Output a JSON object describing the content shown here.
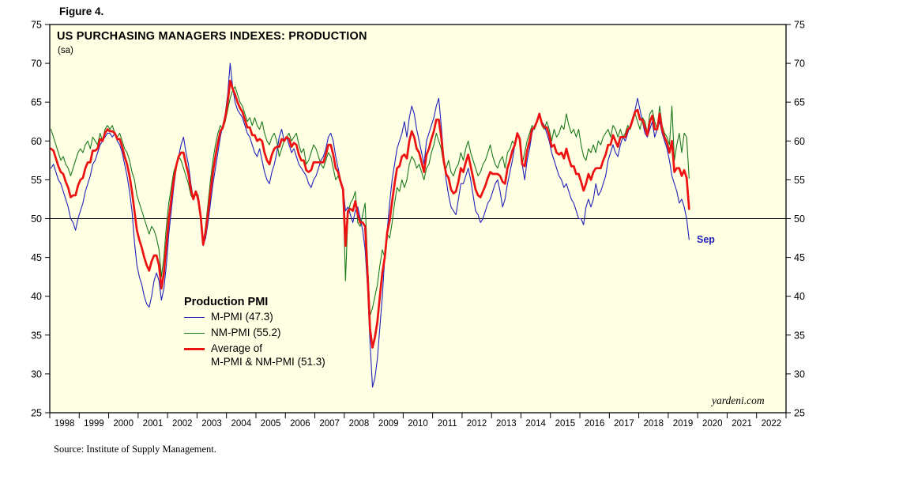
{
  "figure_label": "Figure 4.",
  "chart": {
    "title": "US PURCHASING MANAGERS INDEXES: PRODUCTION",
    "subtitle": "(sa)",
    "watermark": "yardeni.com",
    "annotation": {
      "text": "Sep",
      "color": "#2222bb"
    },
    "plot_background": "#ffffe3",
    "axis_color": "#000000",
    "legend": {
      "heading": "Production PMI",
      "items": [
        {
          "lines": [
            "M-PMI (47.3)"
          ],
          "weight": "thin",
          "color": "#2222bb"
        },
        {
          "lines": [
            "NM-PMI (55.2)"
          ],
          "weight": "thin",
          "color": "#1e7a1e"
        },
        {
          "lines": [
            "Average of",
            "M-PMI & NM-PMI (51.3)"
          ],
          "weight": "thick",
          "color": "#ee1111"
        }
      ]
    }
  },
  "source_note": "Source: Institute of Supply Management.",
  "chart_data": {
    "type": "line",
    "frequency": "monthly",
    "data_start": "1998-01",
    "data_end": "2019-09",
    "ylim": [
      25,
      75
    ],
    "y_ticks": [
      25,
      30,
      35,
      40,
      45,
      50,
      55,
      60,
      65,
      70,
      75
    ],
    "reference_line": 50,
    "x_axis_years": [
      1998,
      1999,
      2000,
      2001,
      2002,
      2003,
      2004,
      2005,
      2006,
      2007,
      2008,
      2009,
      2010,
      2011,
      2012,
      2013,
      2014,
      2015,
      2016,
      2017,
      2018,
      2019,
      2020,
      2021,
      2022
    ],
    "series": [
      {
        "name": "M-PMI",
        "latest_value": 47.3,
        "color": "#2222bb",
        "values": [
          56.5,
          57,
          56,
          55,
          54.5,
          53.5,
          52.5,
          51.5,
          50,
          49.5,
          48.5,
          50,
          51,
          52,
          53.5,
          54.5,
          55.5,
          57,
          57.5,
          58.5,
          59.5,
          60,
          60.5,
          61,
          61,
          60.5,
          61,
          60,
          59.5,
          58.5,
          57,
          55.5,
          53.5,
          51,
          47,
          44,
          42.5,
          41.5,
          40,
          39,
          38.6,
          40,
          42,
          43,
          42,
          39.5,
          41,
          44,
          48,
          51,
          54,
          56.5,
          58,
          59.5,
          60.5,
          58.5,
          57,
          54.5,
          52.5,
          53.5,
          52,
          50,
          46.5,
          47.5,
          49.5,
          52,
          54.5,
          56.5,
          58.5,
          60.5,
          62,
          63.5,
          66,
          70,
          67,
          65,
          64,
          63.5,
          63,
          62,
          61,
          60.5,
          59.5,
          58.5,
          58,
          59,
          57.5,
          56,
          55,
          54.5,
          56,
          57,
          58.5,
          60.5,
          61.5,
          60,
          60.5,
          59.5,
          58.5,
          59,
          58,
          57,
          56.5,
          56,
          55.5,
          54.5,
          54,
          55,
          55.5,
          56.5,
          57.5,
          58,
          59,
          60.5,
          61,
          60,
          58,
          56.5,
          55,
          54,
          51,
          51.5,
          50.5,
          49.5,
          51,
          51.5,
          50,
          48.5,
          46,
          41,
          34,
          28.3,
          29.5,
          32,
          36,
          40,
          45,
          48.5,
          52,
          55,
          57,
          59,
          60,
          61,
          62.5,
          60.5,
          63,
          64.5,
          63.5,
          61.5,
          60,
          58.5,
          57,
          60,
          61,
          62,
          63,
          64.5,
          65.5,
          62,
          58,
          55,
          53,
          51.5,
          51,
          50.5,
          52.5,
          54.5,
          54.5,
          55.5,
          56.5,
          55,
          53,
          51,
          50.5,
          49.5,
          50,
          51,
          52,
          52.5,
          53.5,
          54.5,
          55,
          53.5,
          51.5,
          52.5,
          54.5,
          56,
          57.5,
          59.5,
          61,
          60,
          57,
          55,
          57.5,
          59,
          61,
          62,
          62.5,
          63.5,
          62.5,
          62,
          61,
          60,
          58.5,
          57.5,
          56.5,
          55.5,
          55,
          54,
          54.5,
          53.5,
          52.5,
          52,
          51,
          50,
          50,
          49.2,
          51.5,
          52.5,
          51.5,
          52.5,
          54.5,
          53,
          53.5,
          54.5,
          55.5,
          57.5,
          58.5,
          59.5,
          58.5,
          58,
          59.5,
          60.5,
          60,
          61,
          62,
          63,
          64,
          65.5,
          64,
          62.5,
          61,
          60.5,
          61.5,
          62.5,
          60.5,
          61.5,
          62.5,
          61,
          60,
          59,
          57.5,
          55.5,
          54.5,
          53.5,
          52,
          52.5,
          51.5,
          50,
          47.3
        ]
      },
      {
        "name": "NM-PMI",
        "latest_value": 55.2,
        "color": "#1e7a1e",
        "values": [
          61.5,
          60.5,
          59.5,
          58.5,
          57.5,
          58,
          57,
          56.5,
          55.5,
          56.5,
          57.5,
          58.5,
          59,
          58.5,
          59.5,
          60,
          59,
          60.5,
          60,
          59.5,
          61,
          60,
          61.5,
          62,
          61.5,
          62,
          61,
          60.5,
          61,
          60,
          59,
          58.5,
          57.5,
          56,
          55,
          53,
          52,
          51,
          50,
          49,
          48,
          49,
          48.5,
          47.5,
          46,
          42.5,
          45,
          49,
          52,
          54,
          56,
          57,
          58,
          57.5,
          56.5,
          55.5,
          54.5,
          53,
          52.5,
          53.5,
          53,
          50.5,
          46.8,
          49,
          52,
          55,
          57.5,
          59.5,
          61,
          62,
          61.5,
          62.5,
          64,
          65.5,
          66.5,
          67,
          66,
          65,
          64.5,
          63.5,
          62.5,
          63,
          62,
          63,
          62,
          61.5,
          62.5,
          61,
          60,
          59.5,
          60.5,
          61,
          60,
          58,
          59,
          60,
          60.5,
          61,
          60,
          60.5,
          61,
          59.5,
          58.5,
          59,
          57,
          57.5,
          58.5,
          59.5,
          59,
          58,
          57,
          56.5,
          57.5,
          58.5,
          58,
          56.5,
          55,
          55.5,
          54.5,
          53.5,
          42,
          50.5,
          52,
          52.5,
          53.5,
          49.5,
          49,
          50.5,
          52,
          44.5,
          37.5,
          38.5,
          40,
          41.5,
          44,
          46,
          45,
          48,
          47.5,
          49.5,
          52,
          54,
          53.5,
          55,
          54,
          55,
          57,
          58,
          57.5,
          56.5,
          57,
          56,
          55,
          56.5,
          57,
          58.5,
          59.5,
          61,
          60,
          59,
          57,
          56.5,
          57.5,
          56,
          55.5,
          56.5,
          57,
          58.5,
          57.5,
          59,
          60,
          58.5,
          57.5,
          56.5,
          55.5,
          56,
          57,
          57.5,
          58.5,
          59.5,
          58,
          57,
          56.5,
          57.5,
          58,
          56.5,
          58.5,
          59,
          60,
          59.5,
          61,
          60.5,
          57,
          58.5,
          60,
          61,
          62,
          61.5,
          62.5,
          63.5,
          62,
          61.5,
          62.5,
          61.5,
          60,
          61.5,
          60.5,
          61,
          62,
          61.5,
          63.5,
          62,
          61,
          61.5,
          60.5,
          61.5,
          59.5,
          58,
          57.5,
          59,
          58.5,
          59.5,
          58.5,
          60,
          59.5,
          60.5,
          61,
          61.5,
          60.5,
          62,
          61.5,
          60.5,
          61.5,
          60.5,
          61,
          62,
          61.5,
          62.5,
          63.5,
          62.5,
          61.5,
          63,
          62.5,
          61,
          63.5,
          64,
          62.5,
          61.5,
          64.5,
          62,
          61,
          60.5,
          59.5,
          64.5,
          57.5,
          59.5,
          61,
          58.5,
          61,
          60.5,
          55.2
        ]
      },
      {
        "name": "Average of M-PMI & NM-PMI",
        "latest_value": 51.3,
        "color": "#ee1111",
        "derived": "average of M-PMI and NM-PMI"
      }
    ]
  }
}
